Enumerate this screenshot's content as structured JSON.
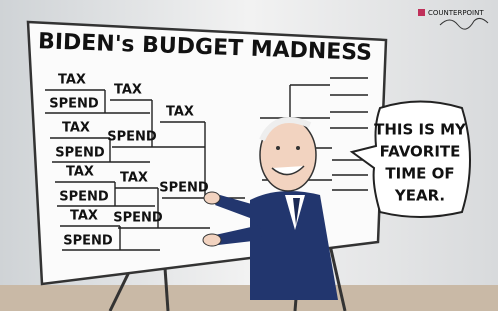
{
  "header": {
    "title": "BIDEN's BUDGET MADNESS"
  },
  "bracket": {
    "round_1": [
      "TAX",
      "SPEND",
      "TAX",
      "SPEND",
      "TAX",
      "SPEND",
      "TAX",
      "SPEND"
    ],
    "round_2": [
      "TAX",
      "SPEND",
      "TAX",
      "SPEND"
    ],
    "round_3": [
      "TAX",
      "SPEND"
    ]
  },
  "speech_bubble": {
    "lines": [
      "THIS IS MY",
      "FAVORITE",
      "TIME OF",
      "YEAR."
    ]
  },
  "logo": {
    "text": "COUNTERPOINT"
  }
}
